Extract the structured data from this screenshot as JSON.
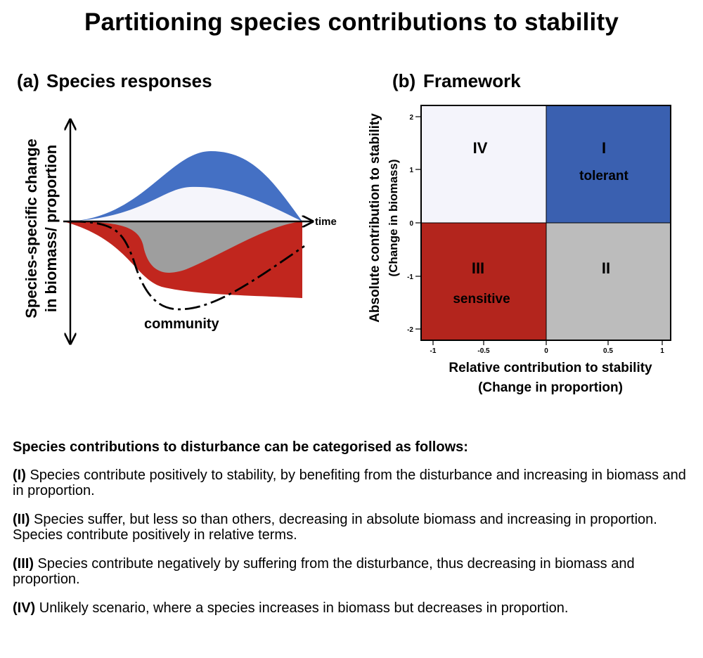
{
  "title": "Partitioning species contributions to stability",
  "panel_a": {
    "tag": "(a)",
    "heading": "Species responses",
    "y_label_line1": "Species-specific change",
    "y_label_line2": "in biomass/ proportion",
    "x_label": "time",
    "community_label": "community"
  },
  "panel_b": {
    "tag": "(b)",
    "heading": "Framework",
    "y_label_line1": "Absolute contribution to stability",
    "y_label_line2": "(Change in biomass)",
    "x_label_line1": "Relative contribution to stability",
    "x_label_line2": "(Change in proportion)",
    "x_ticks": [
      "-1",
      "-0.5",
      "0",
      "0.5",
      "1"
    ],
    "y_ticks": [
      "2",
      "1",
      "0",
      "-1",
      "-2"
    ],
    "quadrants": {
      "I": {
        "numeral": "I",
        "label": "tolerant",
        "color": "#3a60b0"
      },
      "II": {
        "numeral": "II",
        "label": "",
        "color": "#bcbcbc"
      },
      "III": {
        "numeral": "III",
        "label": "sensitive",
        "color": "#b3251d"
      },
      "IV": {
        "numeral": "IV",
        "label": "",
        "color": "#f4f4fb"
      }
    }
  },
  "description": {
    "heading": "Species contributions to disturbance can be categorised as follows:",
    "items": [
      {
        "tag": "(I)",
        "text": " Species contribute positively to stability, by benefiting from the disturbance and increasing in biomass and in proportion."
      },
      {
        "tag": "(II)",
        "text": " Species suffer, but less so than others, decreasing in absolute biomass and increasing in proportion. Species contribute positively in relative terms."
      },
      {
        "tag": "(III)",
        "text": " Species contribute negatively by suffering from the disturbance, thus decreasing in biomass and proportion."
      },
      {
        "tag": "(IV)",
        "text": " Unlikely scenario, where a species increases in biomass but decreases in proportion."
      }
    ]
  },
  "colors": {
    "blue": "#4470c4",
    "red": "#c1261e",
    "grey": "#9e9e9e",
    "light": "#f5f5fb"
  }
}
